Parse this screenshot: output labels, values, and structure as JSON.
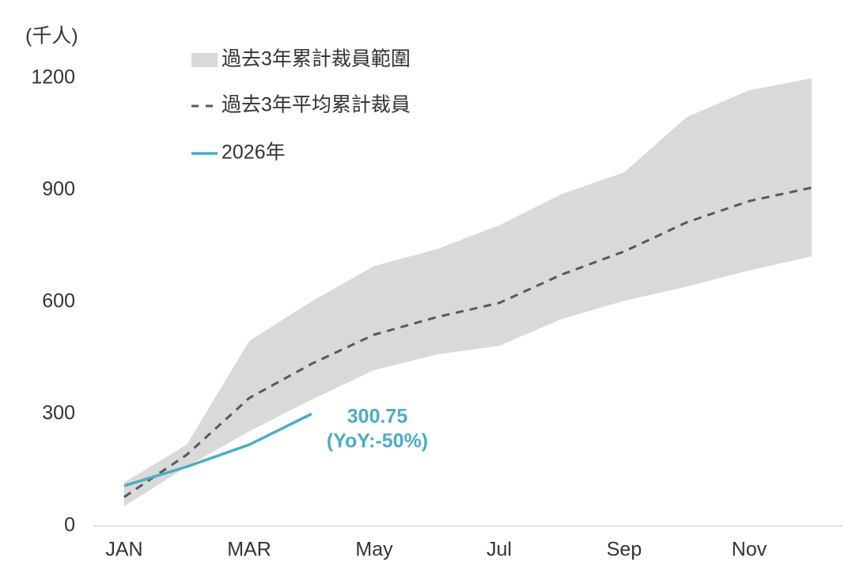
{
  "chart_data": {
    "type": "line",
    "y_label": "(千人)",
    "categories": [
      "JAN",
      null,
      "MAR",
      null,
      "May",
      null,
      "Jul",
      null,
      "Sep",
      null,
      "Nov",
      null
    ],
    "ylim": [
      0,
      1200
    ],
    "yticks": [
      0,
      300,
      600,
      900,
      1200
    ],
    "grid": false,
    "series": [
      {
        "name": "過去3年累計裁員範圍",
        "kind": "band",
        "color": "#d9d9d9",
        "lower": [
          53,
          159,
          254,
          339,
          418,
          460,
          483,
          555,
          604,
          642,
          685,
          723
        ],
        "upper": [
          117,
          218,
          496,
          602,
          697,
          742,
          806,
          890,
          948,
          1096,
          1168,
          1200
        ]
      },
      {
        "name": "過去3年平均累計裁員",
        "kind": "dashed",
        "color": "#595959",
        "values": [
          78,
          191,
          343,
          435,
          513,
          560,
          598,
          674,
          736,
          814,
          871,
          907
        ]
      },
      {
        "name": "2026年",
        "kind": "solid",
        "color": "#4bacc6",
        "values": [
          108,
          159,
          218,
          300.75,
          null,
          null,
          null,
          null,
          null,
          null,
          null,
          null
        ]
      }
    ],
    "annotation": "(YoY:-50%)"
  }
}
